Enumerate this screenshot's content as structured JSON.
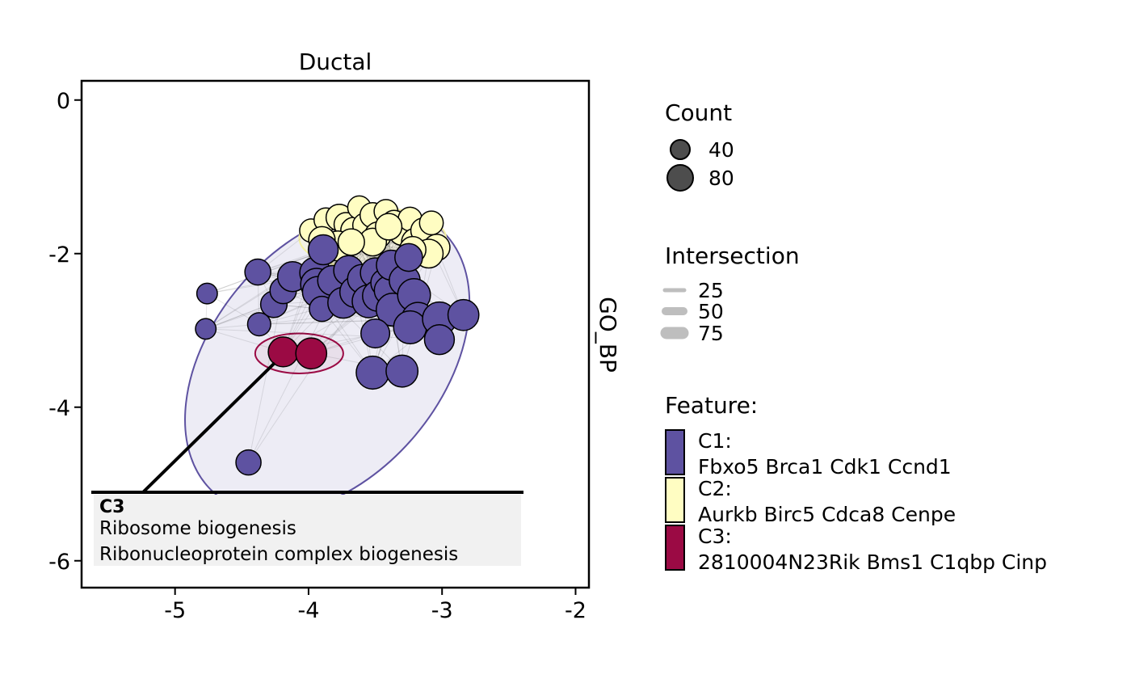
{
  "chart_data": {
    "type": "network",
    "title": "Ductal",
    "strip_label": "GO_BP",
    "x_ticks": [
      -5,
      -4,
      -3,
      -2
    ],
    "y_ticks": [
      0,
      -2,
      -4,
      -6
    ],
    "xlim": [
      -5.7,
      -1.9
    ],
    "ylim": [
      -6.35,
      0.25
    ],
    "colors": {
      "C1": "#5E52A1",
      "C2": "#FFFDC2",
      "C3": "#9B0A44",
      "edge": "#000000",
      "legend_edge": "#BEBEBE",
      "label_box": "#F1F1F1"
    },
    "clusters": [
      {
        "id": "C1",
        "ellipse": {
          "cx": -3.86,
          "cy": -3.4,
          "rx": 1.3,
          "ry": 1.5,
          "angle": -50
        },
        "nodes": [
          {
            "x": -4.76,
            "y": -2.52,
            "count": 20
          },
          {
            "x": -4.77,
            "y": -2.98,
            "count": 20
          },
          {
            "x": -4.38,
            "y": -2.24,
            "count": 38
          },
          {
            "x": -4.37,
            "y": -2.92,
            "count": 28
          },
          {
            "x": -4.26,
            "y": -2.66,
            "count": 40
          },
          {
            "x": -4.19,
            "y": -2.48,
            "count": 40
          },
          {
            "x": -4.12,
            "y": -2.3,
            "count": 55
          },
          {
            "x": -3.95,
            "y": -2.25,
            "count": 60
          },
          {
            "x": -3.94,
            "y": -2.4,
            "count": 65
          },
          {
            "x": -3.93,
            "y": -2.5,
            "count": 60
          },
          {
            "x": -3.9,
            "y": -2.72,
            "count": 35
          },
          {
            "x": -3.89,
            "y": -1.95,
            "count": 55
          },
          {
            "x": -3.82,
            "y": -2.35,
            "count": 55
          },
          {
            "x": -3.74,
            "y": -2.64,
            "count": 60
          },
          {
            "x": -3.7,
            "y": -2.22,
            "count": 55
          },
          {
            "x": -3.65,
            "y": -2.5,
            "count": 60
          },
          {
            "x": -3.6,
            "y": -2.33,
            "count": 50
          },
          {
            "x": -3.55,
            "y": -2.62,
            "count": 70
          },
          {
            "x": -3.5,
            "y": -2.25,
            "count": 55
          },
          {
            "x": -3.48,
            "y": -2.55,
            "count": 60
          },
          {
            "x": -3.43,
            "y": -2.38,
            "count": 45
          },
          {
            "x": -3.4,
            "y": -2.48,
            "count": 50
          },
          {
            "x": -3.38,
            "y": -2.15,
            "count": 55
          },
          {
            "x": -3.37,
            "y": -2.73,
            "count": 70
          },
          {
            "x": -3.28,
            "y": -2.35,
            "count": 60
          },
          {
            "x": -3.25,
            "y": -2.05,
            "count": 45
          },
          {
            "x": -3.21,
            "y": -2.54,
            "count": 70
          },
          {
            "x": -3.18,
            "y": -2.85,
            "count": 70
          },
          {
            "x": -3.24,
            "y": -2.96,
            "count": 70
          },
          {
            "x": -3.5,
            "y": -3.04,
            "count": 50
          },
          {
            "x": -3.02,
            "y": -2.85,
            "count": 75
          },
          {
            "x": -3.02,
            "y": -3.12,
            "count": 55
          },
          {
            "x": -2.84,
            "y": -2.8,
            "count": 60
          },
          {
            "x": -3.52,
            "y": -3.55,
            "count": 70
          },
          {
            "x": -3.3,
            "y": -3.53,
            "count": 65
          },
          {
            "x": -4.45,
            "y": -4.72,
            "count": 35
          }
        ]
      },
      {
        "id": "C2",
        "ellipse": {
          "cx": -3.52,
          "cy": -1.8,
          "rx": 0.55,
          "ry": 0.4,
          "angle": 0
        },
        "nodes": [
          {
            "x": -3.98,
            "y": -1.7,
            "count": 28
          },
          {
            "x": -3.87,
            "y": -1.56,
            "count": 30
          },
          {
            "x": -3.77,
            "y": -1.53,
            "count": 40
          },
          {
            "x": -3.72,
            "y": -1.62,
            "count": 30
          },
          {
            "x": -3.66,
            "y": -1.7,
            "count": 40
          },
          {
            "x": -3.62,
            "y": -1.4,
            "count": 28
          },
          {
            "x": -3.58,
            "y": -1.63,
            "count": 30
          },
          {
            "x": -3.52,
            "y": -1.5,
            "count": 35
          },
          {
            "x": -3.48,
            "y": -1.76,
            "count": 40
          },
          {
            "x": -3.42,
            "y": -1.45,
            "count": 30
          },
          {
            "x": -3.36,
            "y": -1.6,
            "count": 35
          },
          {
            "x": -3.3,
            "y": -1.72,
            "count": 40
          },
          {
            "x": -3.24,
            "y": -1.55,
            "count": 30
          },
          {
            "x": -3.2,
            "y": -1.85,
            "count": 45
          },
          {
            "x": -3.14,
            "y": -1.7,
            "count": 35
          },
          {
            "x": -3.08,
            "y": -1.6,
            "count": 30
          },
          {
            "x": -3.04,
            "y": -1.92,
            "count": 40
          },
          {
            "x": -3.1,
            "y": -2.0,
            "count": 50
          },
          {
            "x": -3.22,
            "y": -1.95,
            "count": 40
          },
          {
            "x": -3.52,
            "y": -1.85,
            "count": 45
          },
          {
            "x": -3.78,
            "y": -1.9,
            "count": 55
          },
          {
            "x": -3.4,
            "y": -1.65,
            "count": 40
          },
          {
            "x": -3.9,
            "y": -1.82,
            "count": 40
          },
          {
            "x": -3.68,
            "y": -1.85,
            "count": 40
          }
        ]
      },
      {
        "id": "C3",
        "ellipse": {
          "cx": -4.07,
          "cy": -3.3,
          "rx": 0.33,
          "ry": 0.26,
          "angle": 0
        },
        "nodes": [
          {
            "x": -4.19,
            "y": -3.28,
            "count": 55
          },
          {
            "x": -3.98,
            "y": -3.3,
            "count": 60
          }
        ]
      }
    ],
    "annotation": {
      "cluster": "C3",
      "title": "C3",
      "lines": [
        "Ribosome biogenesis",
        "Ribonucleoprotein complex biogenesis"
      ]
    },
    "legend": {
      "count": {
        "title": "Count",
        "entries": [
          {
            "label": "40",
            "value": 40
          },
          {
            "label": "80",
            "value": 80
          }
        ]
      },
      "intersection": {
        "title": "Intersection",
        "entries": [
          {
            "label": "25",
            "value": 25
          },
          {
            "label": "50",
            "value": 50
          },
          {
            "label": "75",
            "value": 75
          }
        ]
      },
      "feature": {
        "title": "Feature:",
        "entries": [
          {
            "id": "C1",
            "label": "C1:",
            "genes": "Fbxo5 Brca1 Cdk1 Ccnd1"
          },
          {
            "id": "C2",
            "label": "C2:",
            "genes": "Aurkb Birc5 Cdca8 Cenpe"
          },
          {
            "id": "C3",
            "label": "C3:",
            "genes": "2810004N23Rik Bms1 C1qbp Cinp"
          }
        ]
      }
    }
  }
}
